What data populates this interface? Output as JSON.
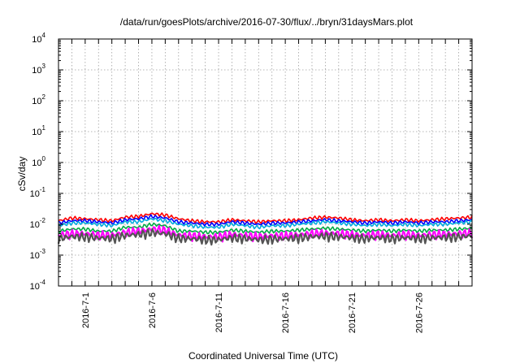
{
  "chart_data": {
    "type": "line",
    "title": "/data/run/goesPlots/archive/2016-07-30/flux/../bryn/31daysMars.plot",
    "xlabel": "Coordinated Universal Time (UTC)",
    "ylabel": "cSv/day",
    "yscale": "log",
    "ylim": [
      0.0001,
      10000
    ],
    "y_ticks": [
      {
        "base": "10",
        "exp": "-4",
        "value": 0.0001
      },
      {
        "base": "10",
        "exp": "-3",
        "value": 0.001
      },
      {
        "base": "10",
        "exp": "-2",
        "value": 0.01
      },
      {
        "base": "10",
        "exp": "-1",
        "value": 0.1
      },
      {
        "base": "10",
        "exp": "0",
        "value": 1
      },
      {
        "base": "10",
        "exp": "1",
        "value": 10
      },
      {
        "base": "10",
        "exp": "2",
        "value": 100
      },
      {
        "base": "10",
        "exp": "3",
        "value": 1000
      },
      {
        "base": "10",
        "exp": "4",
        "value": 10000
      }
    ],
    "xlim": [
      "2016-06-29",
      "2016-07-30"
    ],
    "x_ticks": [
      {
        "label": "2016-7-1",
        "date": "2016-07-01"
      },
      {
        "label": "2016-7-6",
        "date": "2016-07-06"
      },
      {
        "label": "2016-7-11",
        "date": "2016-07-11"
      },
      {
        "label": "2016-7-16",
        "date": "2016-07-16"
      },
      {
        "label": "2016-7-21",
        "date": "2016-07-21"
      },
      {
        "label": "2016-7-26",
        "date": "2016-07-26"
      }
    ],
    "grid": true,
    "x": [
      "2016-06-29",
      "2016-06-30",
      "2016-07-01",
      "2016-07-02",
      "2016-07-03",
      "2016-07-04",
      "2016-07-05",
      "2016-07-06",
      "2016-07-07",
      "2016-07-08",
      "2016-07-09",
      "2016-07-10",
      "2016-07-11",
      "2016-07-12",
      "2016-07-13",
      "2016-07-14",
      "2016-07-15",
      "2016-07-16",
      "2016-07-17",
      "2016-07-18",
      "2016-07-19",
      "2016-07-20",
      "2016-07-21",
      "2016-07-22",
      "2016-07-23",
      "2016-07-24",
      "2016-07-25",
      "2016-07-26",
      "2016-07-27",
      "2016-07-28",
      "2016-07-29",
      "2016-07-30"
    ],
    "series": [
      {
        "color": "#ff0000",
        "values": [
          0.013,
          0.016,
          0.015,
          0.014,
          0.013,
          0.017,
          0.018,
          0.022,
          0.02,
          0.015,
          0.013,
          0.012,
          0.012,
          0.014,
          0.013,
          0.012,
          0.013,
          0.013,
          0.014,
          0.016,
          0.017,
          0.016,
          0.014,
          0.013,
          0.014,
          0.013,
          0.014,
          0.013,
          0.014,
          0.015,
          0.016,
          0.017
        ]
      },
      {
        "color": "#0000ff",
        "values": [
          0.011,
          0.013,
          0.013,
          0.012,
          0.011,
          0.014,
          0.015,
          0.018,
          0.016,
          0.012,
          0.011,
          0.01,
          0.01,
          0.012,
          0.011,
          0.01,
          0.011,
          0.011,
          0.012,
          0.013,
          0.014,
          0.013,
          0.012,
          0.011,
          0.012,
          0.011,
          0.012,
          0.011,
          0.012,
          0.012,
          0.013,
          0.014
        ]
      },
      {
        "color": "#00aadd",
        "values": [
          0.009,
          0.011,
          0.011,
          0.01,
          0.009,
          0.012,
          0.012,
          0.015,
          0.013,
          0.01,
          0.009,
          0.008,
          0.008,
          0.01,
          0.009,
          0.008,
          0.009,
          0.009,
          0.01,
          0.011,
          0.012,
          0.011,
          0.01,
          0.009,
          0.01,
          0.009,
          0.01,
          0.009,
          0.01,
          0.01,
          0.011,
          0.012
        ]
      },
      {
        "color": "#00aa44",
        "values": [
          0.006,
          0.007,
          0.007,
          0.006,
          0.006,
          0.008,
          0.008,
          0.01,
          0.009,
          0.006,
          0.006,
          0.0055,
          0.0055,
          0.0065,
          0.006,
          0.0055,
          0.006,
          0.006,
          0.0065,
          0.007,
          0.0075,
          0.007,
          0.0065,
          0.006,
          0.0065,
          0.006,
          0.0065,
          0.006,
          0.0065,
          0.0065,
          0.007,
          0.0075
        ]
      },
      {
        "color": "#ff00ff",
        "values": [
          0.0045,
          0.005,
          0.005,
          0.0045,
          0.0045,
          0.0055,
          0.006,
          0.007,
          0.0065,
          0.0045,
          0.0042,
          0.004,
          0.004,
          0.0047,
          0.0044,
          0.004,
          0.0043,
          0.0043,
          0.0046,
          0.005,
          0.0053,
          0.005,
          0.0047,
          0.0044,
          0.0047,
          0.0044,
          0.0047,
          0.0044,
          0.0047,
          0.0048,
          0.005,
          0.0053
        ]
      },
      {
        "color": "#555555",
        "values": [
          0.0035,
          0.004,
          0.004,
          0.0036,
          0.0035,
          0.0044,
          0.0047,
          0.0055,
          0.005,
          0.0036,
          0.0034,
          0.0032,
          0.0032,
          0.0037,
          0.0035,
          0.0032,
          0.0034,
          0.0034,
          0.0037,
          0.004,
          0.0042,
          0.004,
          0.0037,
          0.0035,
          0.0037,
          0.0035,
          0.0037,
          0.0035,
          0.0037,
          0.0038,
          0.004,
          0.0042
        ]
      }
    ]
  }
}
